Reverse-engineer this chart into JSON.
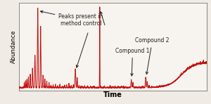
{
  "bg_color": "#f0ebe4",
  "plot_bg": "#f7f3ee",
  "line_color": "#c41010",
  "line_width": 0.7,
  "xlabel": "Time",
  "ylabel": "Abundance",
  "xlabel_fontsize": 7,
  "ylabel_fontsize": 6,
  "annotation_fontsize": 5.5,
  "annotation_color": "#222222",
  "peaks_label": "Peaks present in\nmethod control",
  "compound1_label": "Compound 1",
  "compound2_label": "Compound 2",
  "arrow_color": "#333333",
  "spine_color": "#777777"
}
